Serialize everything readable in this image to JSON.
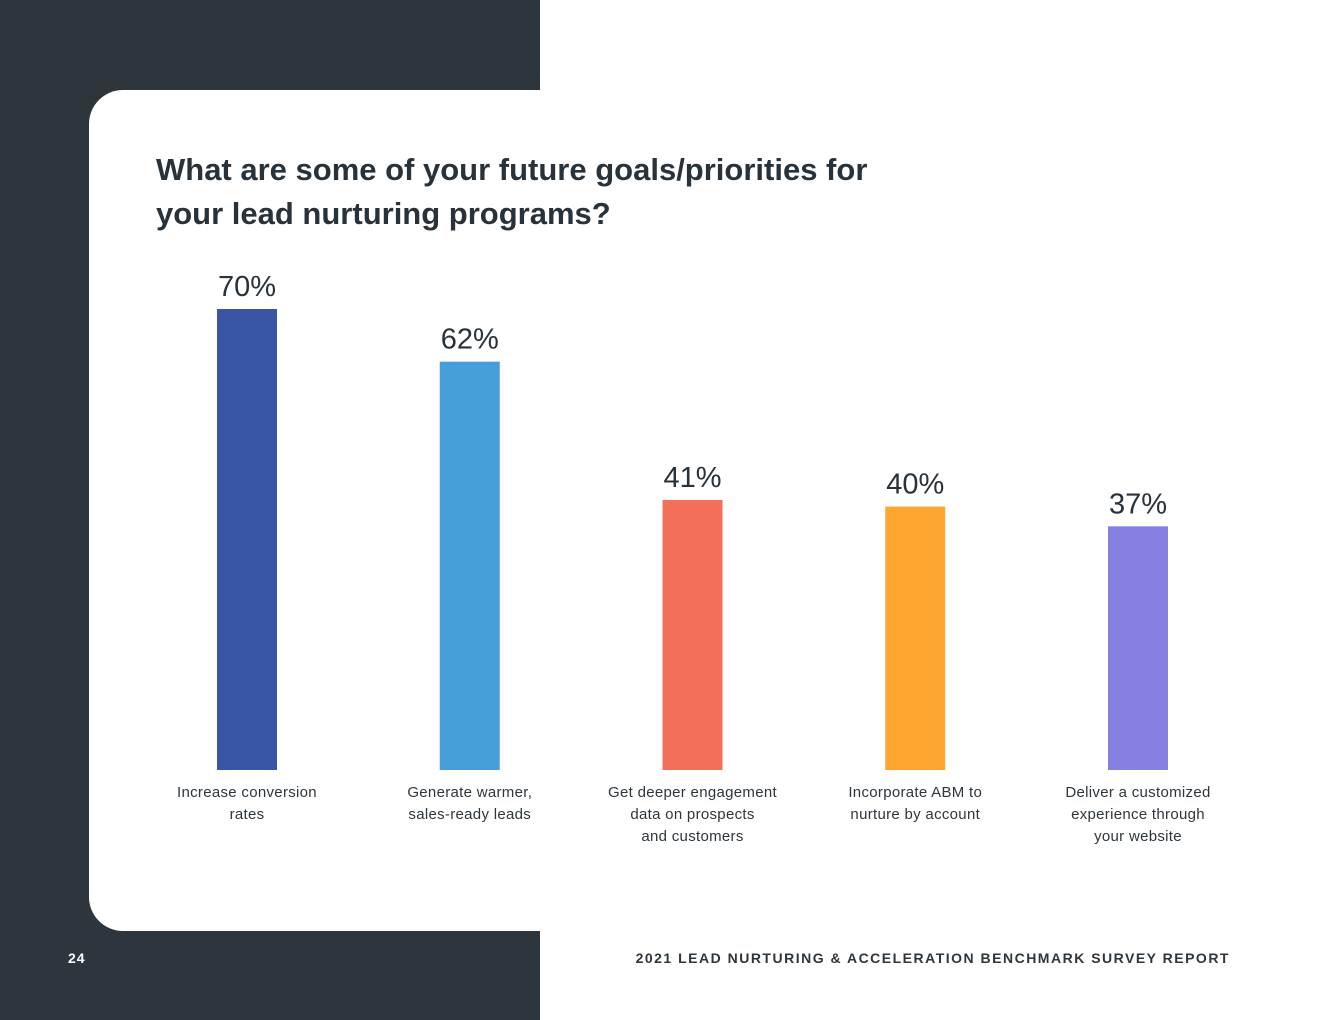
{
  "page": {
    "number": "24",
    "report_title": "2021 LEAD NURTURING & ACCELERATION BENCHMARK SURVEY REPORT"
  },
  "chart_data": {
    "type": "bar",
    "title": "What are some of your future goals/priorities for your lead nurturing programs?",
    "categories": [
      "Increase conversion rates",
      "Generate warmer, sales-ready leads",
      "Get deeper engagement data on prospects and customers",
      "Incorporate ABM to nurture by account",
      "Deliver a customized experience through your website"
    ],
    "category_lines": [
      [
        "Increase conversion",
        "rates"
      ],
      [
        "Generate warmer,",
        "sales-ready leads"
      ],
      [
        "Get deeper engagement",
        "data on prospects",
        "and customers"
      ],
      [
        "Incorporate ABM to",
        "nurture by account"
      ],
      [
        "Deliver a customized",
        "experience through",
        "your website"
      ]
    ],
    "values": [
      70,
      62,
      41,
      40,
      37
    ],
    "value_labels": [
      "70%",
      "62%",
      "41%",
      "40%",
      "37%"
    ],
    "colors": [
      "#3a55a6",
      "#469fd8",
      "#f27059",
      "#ffa630",
      "#8380e2"
    ],
    "xlabel": "",
    "ylabel": "",
    "ylim": [
      0,
      70
    ],
    "grid": false
  }
}
